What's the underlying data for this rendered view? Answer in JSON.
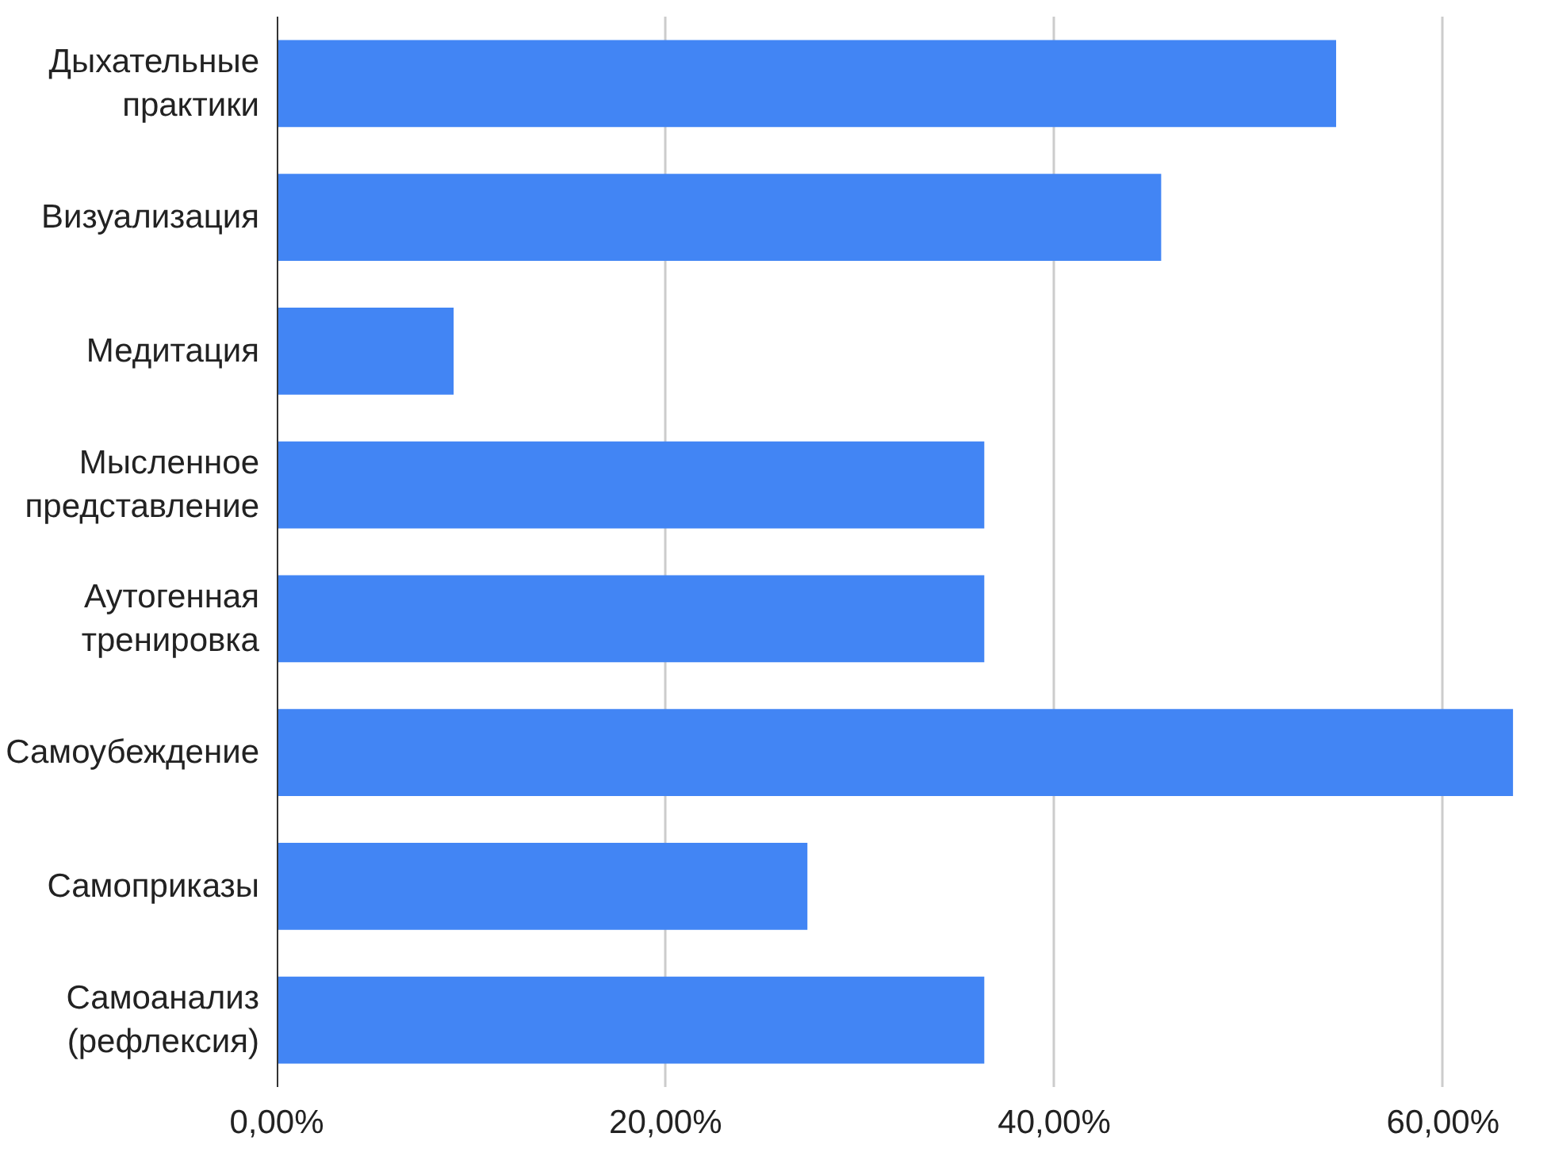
{
  "chart_data": {
    "type": "bar",
    "orientation": "horizontal",
    "categories": [
      "Дыхательные\nпрактики",
      "Визуализация",
      "Медитация",
      "Мысленное\nпредставление",
      "Аутогенная\nтренировка",
      "Самоубеждение",
      "Самоприказы",
      "Самоанализ\n(рефлексия)"
    ],
    "values": [
      54.5,
      45.5,
      9.1,
      36.4,
      36.4,
      63.6,
      27.3,
      36.4
    ],
    "color": "#4285f4",
    "xlim": [
      0,
      63.8
    ],
    "xticks": [
      {
        "value": 0,
        "label": "0,00%"
      },
      {
        "value": 20,
        "label": "20,00%"
      },
      {
        "value": 40,
        "label": "40,00%"
      },
      {
        "value": 60,
        "label": "60,00%"
      }
    ],
    "grid": "x"
  }
}
